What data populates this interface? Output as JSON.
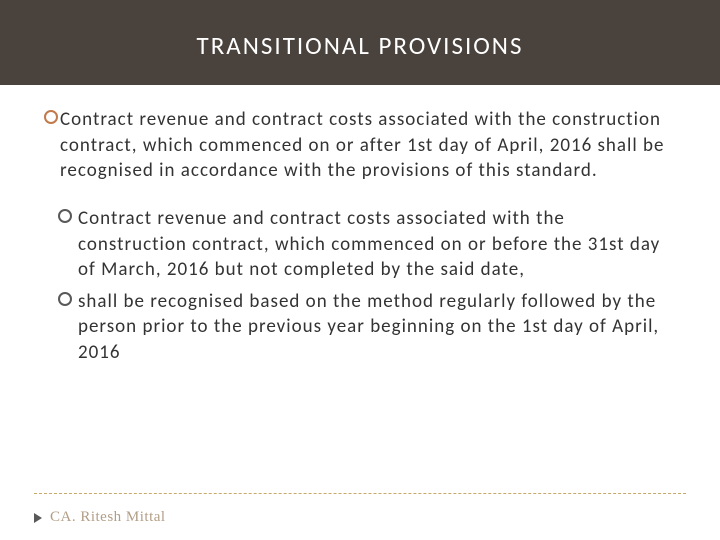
{
  "colors": {
    "header_bg": "#4a423c",
    "header_text": "#ffffff",
    "bullet_accent": "#c17a4a",
    "bullet_plain": "#595959",
    "body_text": "#333333",
    "footer_tri": "#595959",
    "footer_text": "#b29e86",
    "rule_color": "#c9a96a"
  },
  "title": "TRANSITIONAL PROVISIONS",
  "bullets": [
    {
      "accent": true,
      "tight": true,
      "text": "Contract revenue and contract costs associated with the construction contract, which commenced on or after 1st day of April, 2016 shall be recognised in accordance with the provisions of this standard."
    },
    {
      "accent": false,
      "tight": false,
      "text": "Contract revenue and contract costs associated with the construction contract, which commenced on or before the 31st day of March, 2016 but not completed by the said date,"
    },
    {
      "accent": false,
      "tight": false,
      "text": "shall be recognised based on the method regularly followed by the person prior to the previous year beginning on the 1st day of April, 2016"
    }
  ],
  "footer": {
    "author": "CA. Ritesh Mittal"
  }
}
